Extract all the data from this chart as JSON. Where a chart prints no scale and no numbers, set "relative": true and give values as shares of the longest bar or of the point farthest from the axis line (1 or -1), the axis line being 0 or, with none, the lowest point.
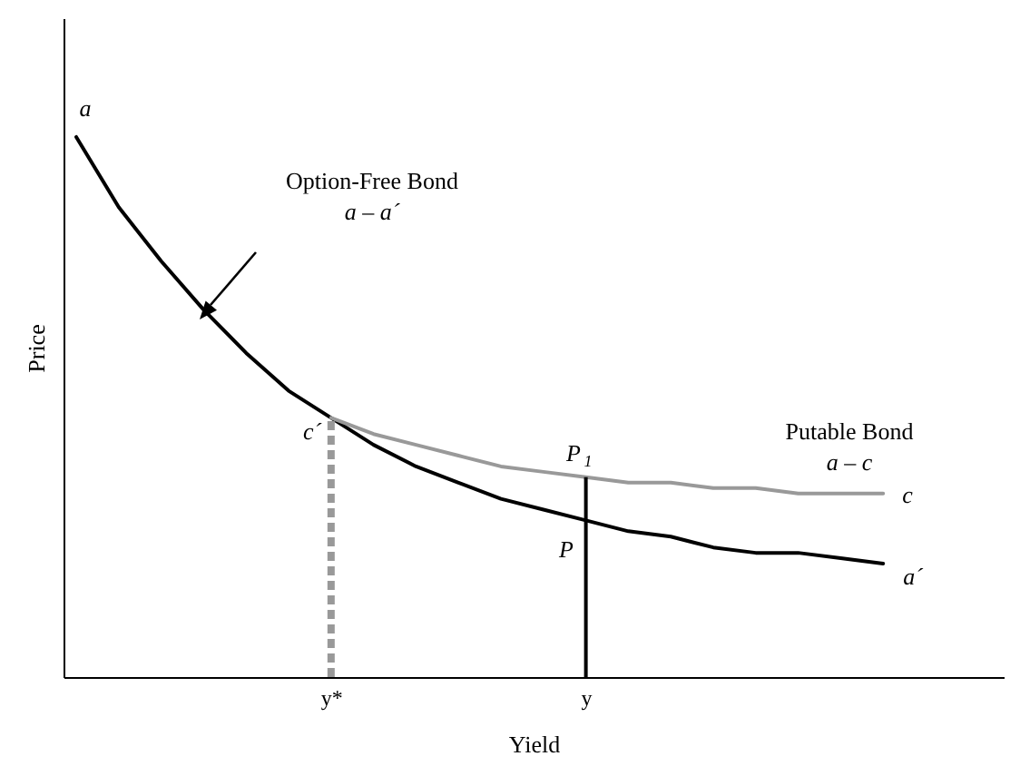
{
  "chart_data": {
    "type": "line",
    "relative": true,
    "xlabel": "Yield",
    "ylabel": "Price",
    "categories": [
      null,
      null,
      null,
      null,
      null,
      null,
      "y*",
      null,
      null,
      null,
      null,
      null,
      "y",
      null,
      null,
      null,
      null,
      null,
      null,
      null
    ],
    "series": [
      {
        "color": "#000000",
        "values": [
          1,
          0.87,
          0.77,
          0.68,
          0.6,
          0.53,
          0.48,
          0.43,
          0.39,
          0.36,
          0.33,
          0.31,
          0.29,
          0.27,
          0.26,
          0.24,
          0.23,
          0.23,
          0.22,
          0.21
        ]
      },
      {
        "color": "#999999",
        "values": [
          null,
          null,
          null,
          null,
          null,
          null,
          0.48,
          0.45,
          0.43,
          0.41,
          0.39,
          0.38,
          0.37,
          0.36,
          0.36,
          0.35,
          0.35,
          0.34,
          0.34,
          0.34
        ]
      }
    ],
    "ref_lines": [
      {
        "axis": "x",
        "value": "y*",
        "color": "#999999",
        "line_style": "dashed"
      },
      {
        "axis": "x",
        "value": "y",
        "color": "#000000",
        "line_style": "solid"
      }
    ],
    "annotations": [
      "a",
      "Option-Free Bond",
      "a – a´",
      "c´",
      "P$_{1}$",
      "P",
      "Putable Bond",
      "a – c",
      "c",
      "a´"
    ]
  }
}
